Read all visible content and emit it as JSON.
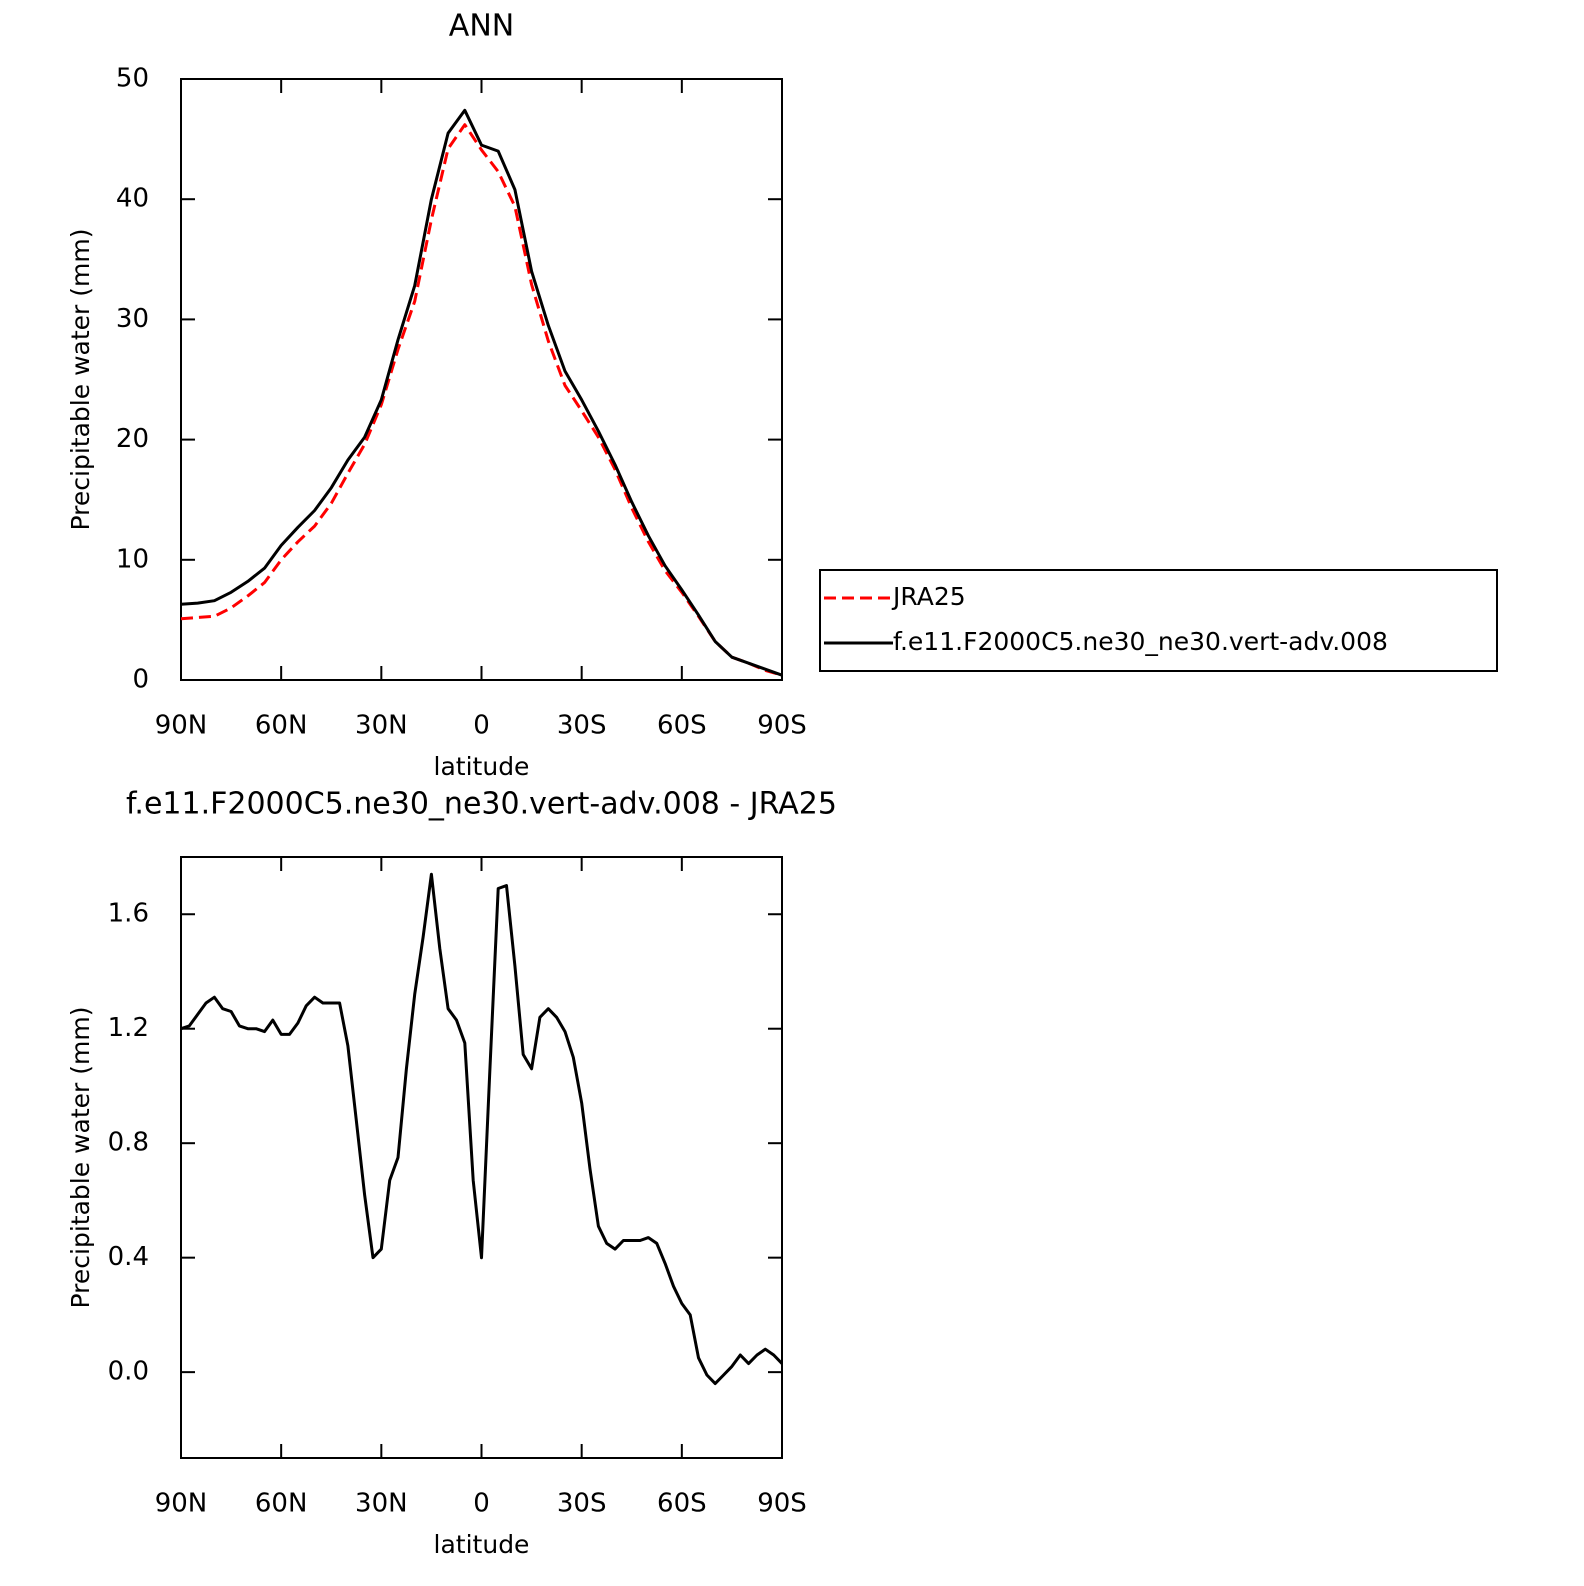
{
  "chart_data": [
    {
      "type": "line",
      "title": "ANN",
      "xlabel": "latitude",
      "ylabel": "Precipitable water (mm)",
      "x": [
        90,
        85,
        80,
        75,
        70,
        65,
        60,
        55,
        50,
        45,
        40,
        35,
        30,
        25,
        20,
        15,
        10,
        5,
        0,
        -5,
        -10,
        -15,
        -20,
        -25,
        -30,
        -35,
        -40,
        -45,
        -50,
        -55,
        -60,
        -65,
        -70,
        -75,
        -80,
        -85,
        -90
      ],
      "xlim": [
        90,
        -90
      ],
      "xticks": [
        {
          "value": 90,
          "label": "90N"
        },
        {
          "value": 60,
          "label": "60N"
        },
        {
          "value": 30,
          "label": "30N"
        },
        0,
        {
          "value": -30,
          "label": "30S"
        },
        {
          "value": -60,
          "label": "60S"
        },
        {
          "value": -90,
          "label": "90S"
        }
      ],
      "ylim": [
        0,
        50
      ],
      "yticks": [
        0,
        10,
        20,
        30,
        40,
        50
      ],
      "legend": "right",
      "series": [
        {
          "name": "JRA25",
          "color": "#ff0000",
          "dash": "dashed",
          "values": [
            5.1,
            5.2,
            5.3,
            6.0,
            7.0,
            8.1,
            10.0,
            11.5,
            12.8,
            14.7,
            17.2,
            19.6,
            22.9,
            27.5,
            31.5,
            38.3,
            44.2,
            46.2,
            44.1,
            42.3,
            39.4,
            32.9,
            28.2,
            24.5,
            22.4,
            20.2,
            17.5,
            14.3,
            11.5,
            9.1,
            7.3,
            5.3,
            3.2,
            1.9,
            1.4,
            0.8,
            0.4
          ]
        },
        {
          "name": "f.e11.F2000C5.ne30_ne30.vert-adv.008",
          "color": "#000000",
          "dash": "solid",
          "values": [
            6.3,
            6.4,
            6.6,
            7.3,
            8.2,
            9.3,
            11.2,
            12.7,
            14.1,
            16.0,
            18.3,
            20.2,
            23.3,
            28.3,
            32.8,
            40.0,
            45.5,
            47.4,
            44.5,
            44.0,
            40.8,
            34.0,
            29.5,
            25.7,
            23.3,
            20.7,
            17.9,
            14.8,
            12.0,
            9.5,
            7.5,
            5.4,
            3.2,
            1.9,
            1.4,
            0.9,
            0.4
          ]
        }
      ]
    },
    {
      "type": "line",
      "title": "f.e11.F2000C5.ne30_ne30.vert-adv.008 - JRA25",
      "xlabel": "latitude",
      "ylabel": "Precipitable water (mm)",
      "x": [
        90,
        87.5,
        85,
        82.5,
        80,
        77.5,
        75,
        72.5,
        70,
        67.5,
        65,
        62.5,
        60,
        57.5,
        55,
        52.5,
        50,
        47.5,
        45,
        42.5,
        40,
        37.5,
        35,
        32.5,
        30,
        27.5,
        25,
        22.5,
        20,
        17.5,
        15,
        12.5,
        10,
        7.5,
        5,
        2.5,
        0,
        -2.5,
        -5,
        -7.5,
        -10,
        -12.5,
        -15,
        -17.5,
        -20,
        -22.5,
        -25,
        -27.5,
        -30,
        -32.5,
        -35,
        -37.5,
        -40,
        -42.5,
        -45,
        -47.5,
        -50,
        -52.5,
        -55,
        -57.5,
        -60,
        -62.5,
        -65,
        -67.5,
        -70,
        -72.5,
        -75,
        -77.5,
        -80,
        -82.5,
        -85,
        -87.5,
        -90
      ],
      "xlim": [
        90,
        -90
      ],
      "xticks": [
        {
          "value": 90,
          "label": "90N"
        },
        {
          "value": 60,
          "label": "60N"
        },
        {
          "value": 30,
          "label": "30N"
        },
        0,
        {
          "value": -30,
          "label": "30S"
        },
        {
          "value": -60,
          "label": "60S"
        },
        {
          "value": -90,
          "label": "90S"
        }
      ],
      "ylim": [
        -0.3,
        1.8
      ],
      "yticks": [
        {
          "value": 0,
          "label": "0.0"
        },
        0.4,
        0.8,
        1.2,
        1.6
      ],
      "color": "#000000",
      "values": [
        1.2,
        1.21,
        1.25,
        1.29,
        1.31,
        1.27,
        1.26,
        1.21,
        1.2,
        1.2,
        1.19,
        1.23,
        1.18,
        1.18,
        1.22,
        1.28,
        1.31,
        1.29,
        1.29,
        1.29,
        1.14,
        0.88,
        0.62,
        0.4,
        0.43,
        0.67,
        0.75,
        1.06,
        1.32,
        1.52,
        1.74,
        1.48,
        1.27,
        1.23,
        1.15,
        0.67,
        0.4,
        1.05,
        1.69,
        1.7,
        1.42,
        1.11,
        1.06,
        1.24,
        1.27,
        1.24,
        1.19,
        1.1,
        0.94,
        0.71,
        0.51,
        0.45,
        0.43,
        0.46,
        0.46,
        0.46,
        0.47,
        0.45,
        0.38,
        0.3,
        0.24,
        0.2,
        0.05,
        -0.01,
        -0.04,
        -0.01,
        0.02,
        0.06,
        0.03,
        0.06,
        0.08,
        0.06,
        0.03
      ]
    }
  ]
}
